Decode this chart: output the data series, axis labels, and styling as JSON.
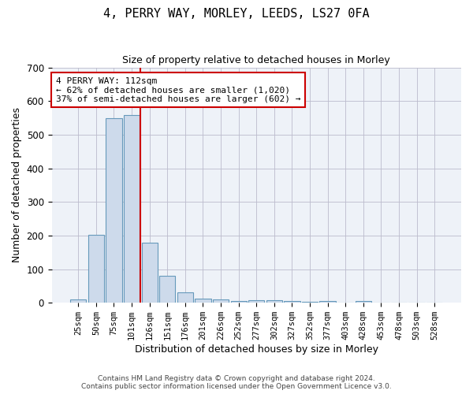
{
  "title": "4, PERRY WAY, MORLEY, LEEDS, LS27 0FA",
  "subtitle": "Size of property relative to detached houses in Morley",
  "xlabel": "Distribution of detached houses by size in Morley",
  "ylabel": "Number of detached properties",
  "bar_labels": [
    "25sqm",
    "50sqm",
    "75sqm",
    "101sqm",
    "126sqm",
    "151sqm",
    "176sqm",
    "201sqm",
    "226sqm",
    "252sqm",
    "277sqm",
    "302sqm",
    "327sqm",
    "352sqm",
    "377sqm",
    "403sqm",
    "428sqm",
    "453sqm",
    "478sqm",
    "503sqm",
    "528sqm"
  ],
  "bar_values": [
    10,
    203,
    548,
    558,
    178,
    80,
    30,
    12,
    10,
    5,
    8,
    8,
    5,
    3,
    5,
    0,
    5,
    0,
    0,
    0,
    0
  ],
  "bar_color": "#cddaeb",
  "bar_edge_color": "#6699bb",
  "vline_x": 3.5,
  "vline_color": "#cc0000",
  "annotation_text": "4 PERRY WAY: 112sqm\n← 62% of detached houses are smaller (1,020)\n37% of semi-detached houses are larger (602) →",
  "annotation_box_color": "#ffffff",
  "annotation_box_edge": "#cc0000",
  "ylim": [
    0,
    700
  ],
  "yticks": [
    0,
    100,
    200,
    300,
    400,
    500,
    600,
    700
  ],
  "footer_line1": "Contains HM Land Registry data © Crown copyright and database right 2024.",
  "footer_line2": "Contains public sector information licensed under the Open Government Licence v3.0.",
  "background_color": "#eef2f8",
  "fig_background": "#ffffff",
  "grid_color": "#bbbbcc"
}
